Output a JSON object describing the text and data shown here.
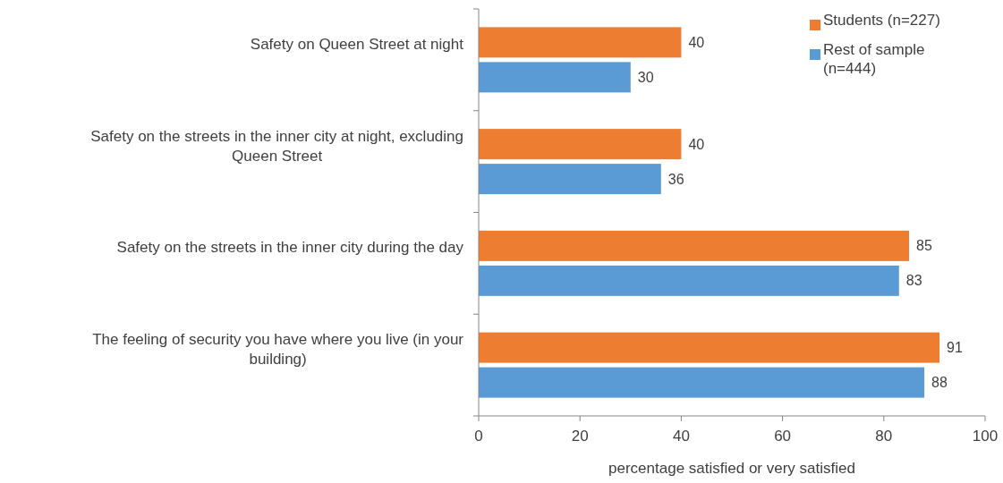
{
  "chart_data": {
    "type": "bar",
    "orientation": "horizontal",
    "xlabel": "percentage satisfied or very satisfied",
    "categories": [
      "Safety on Queen Street at night",
      "Safety on the streets in the inner city at night, excluding Queen Street",
      "Safety on the streets in the inner city during the day",
      "The feeling of security you have where you live (in your building)"
    ],
    "series": [
      {
        "name": "Students (n=227)",
        "color": "#ed7d31",
        "values": [
          40,
          40,
          85,
          91
        ]
      },
      {
        "name": "Rest of sample (n=444)",
        "color": "#5b9bd5",
        "values": [
          30,
          36,
          83,
          88
        ]
      }
    ],
    "xlim": [
      0,
      100
    ],
    "xticks": [
      0,
      20,
      40,
      60,
      80,
      100
    ],
    "grid": false,
    "legend": "top right",
    "data_labels": true
  }
}
